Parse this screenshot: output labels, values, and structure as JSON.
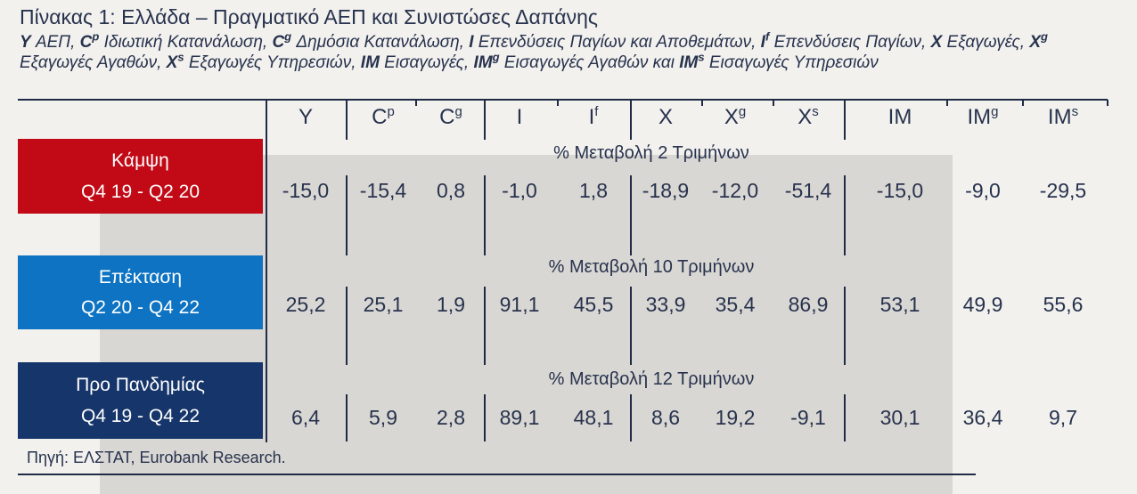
{
  "title": "Πίνακας 1: Ελλάδα – Πραγματικό ΑΕΠ και Συνιστώσες Δαπάνης",
  "legend_segments": [
    {
      "sym": "Y",
      "sup": "",
      "text": " ΑΕΠ, "
    },
    {
      "sym": "C",
      "sup": "p",
      "text": " Ιδιωτική Κατανάλωση, "
    },
    {
      "sym": "C",
      "sup": "g",
      "text": " Δημόσια Κατανάλωση, "
    },
    {
      "sym": "I",
      "sup": "",
      "text": " Επενδύσεις Παγίων και Αποθεμάτων, "
    },
    {
      "sym": "I",
      "sup": "f",
      "text": " Επενδύσεις Παγίων, "
    },
    {
      "sym": "X",
      "sup": "",
      "text": " Εξαγωγές, "
    },
    {
      "sym": "X",
      "sup": "g",
      "text": " Εξαγωγές Αγαθών, "
    },
    {
      "sym": "X",
      "sup": "s",
      "text": " Εξαγωγές Υπηρεσιών, "
    },
    {
      "sym": "IM",
      "sup": "",
      "text": " Εισαγωγές, "
    },
    {
      "sym": "IM",
      "sup": "g",
      "text": " Εισαγωγές Αγαθών και "
    },
    {
      "sym": "IM",
      "sup": "s",
      "text": " Εισαγωγές Υπηρεσιών"
    }
  ],
  "table": {
    "columns": [
      {
        "base": "Y",
        "sup": ""
      },
      {
        "base": "C",
        "sup": "p"
      },
      {
        "base": "C",
        "sup": "g"
      },
      {
        "base": "I",
        "sup": ""
      },
      {
        "base": "I",
        "sup": "f"
      },
      {
        "base": "X",
        "sup": ""
      },
      {
        "base": "X",
        "sup": "g"
      },
      {
        "base": "X",
        "sup": "s"
      },
      {
        "base": "IM",
        "sup": ""
      },
      {
        "base": "IM",
        "sup": "g"
      },
      {
        "base": "IM",
        "sup": "s"
      }
    ],
    "rows": [
      {
        "phase": "Κάμψη",
        "period": "Q4 19 - Q2 20",
        "band_label": "% Μεταβολή 2 Τριμήνων",
        "color": "#c20a16",
        "values": [
          "-15,0",
          "-15,4",
          "0,8",
          "-1,0",
          "1,8",
          "-18,9",
          "-12,0",
          "-51,4",
          "-15,0",
          "-9,0",
          "-29,5"
        ]
      },
      {
        "phase": "Επέκταση",
        "period": "Q2 20 - Q4 22",
        "band_label": "% Μεταβολή 10 Τριμήνων",
        "color": "#0d73c2",
        "values": [
          "25,2",
          "25,1",
          "1,9",
          "91,1",
          "45,5",
          "33,9",
          "35,4",
          "86,9",
          "53,1",
          "49,9",
          "55,6"
        ]
      },
      {
        "phase": "Προ Πανδημίας",
        "period": "Q4 19 - Q4 22",
        "band_label": "% Μεταβολή 12 Τριμήνων",
        "color": "#16356a",
        "values": [
          "6,4",
          "5,9",
          "2,8",
          "89,1",
          "48,1",
          "8,6",
          "19,2",
          "-9,1",
          "30,1",
          "36,4",
          "9,7"
        ]
      }
    ]
  },
  "source": "Πηγή: ΕΛΣΤΑΤ, Eurobank Research.",
  "colors": {
    "background": "#f2f1ee",
    "gray_band": "#d9d7d3",
    "rule": "#1e2b45",
    "text": "#27324d",
    "phase_red": "#c20a16",
    "phase_blue": "#0d73c2",
    "phase_navy": "#16356a",
    "phase_text": "#ffffff"
  },
  "chart_data": {
    "type": "table",
    "title": "Πίνακας 1: Ελλάδα – Πραγματικό ΑΕΠ και Συνιστώσες Δαπάνης",
    "columns": [
      "Y",
      "Cp",
      "Cg",
      "I",
      "If",
      "X",
      "Xg",
      "Xs",
      "IM",
      "IMg",
      "IMs"
    ],
    "rows": [
      {
        "phase": "Κάμψη",
        "period": "Q4 19 - Q2 20",
        "measure": "% Μεταβολή 2 Τριμήνων",
        "values": [
          -15.0,
          -15.4,
          0.8,
          -1.0,
          1.8,
          -18.9,
          -12.0,
          -51.4,
          -15.0,
          -9.0,
          -29.5
        ]
      },
      {
        "phase": "Επέκταση",
        "period": "Q2 20 - Q4 22",
        "measure": "% Μεταβολή 10 Τριμήνων",
        "values": [
          25.2,
          25.1,
          1.9,
          91.1,
          45.5,
          33.9,
          35.4,
          86.9,
          53.1,
          49.9,
          55.6
        ]
      },
      {
        "phase": "Προ Πανδημίας",
        "period": "Q4 19 - Q4 22",
        "measure": "% Μεταβολή 12 Τριμήνων",
        "values": [
          6.4,
          5.9,
          2.8,
          89.1,
          48.1,
          8.6,
          19.2,
          -9.1,
          30.1,
          36.4,
          9.7
        ]
      }
    ],
    "source": "Πηγή: ΕΛΣΤΑΤ, Eurobank Research."
  }
}
